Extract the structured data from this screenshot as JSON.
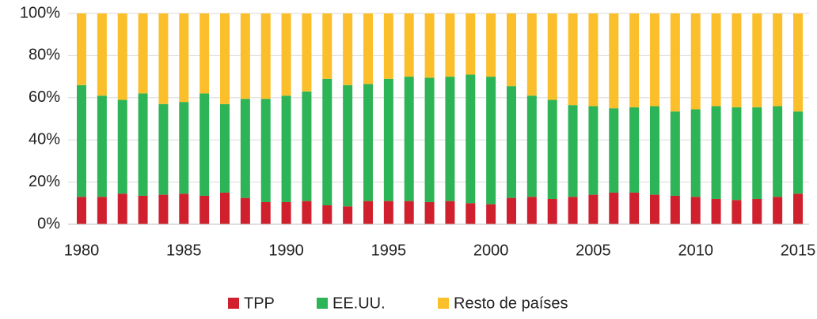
{
  "chart_data": {
    "type": "stacked_bar",
    "x": [
      1980,
      1981,
      1982,
      1983,
      1984,
      1985,
      1986,
      1987,
      1988,
      1989,
      1990,
      1991,
      1992,
      1993,
      1994,
      1995,
      1996,
      1997,
      1998,
      1999,
      2000,
      2001,
      2002,
      2003,
      2004,
      2005,
      2006,
      2007,
      2008,
      2009,
      2010,
      2011,
      2012,
      2013,
      2014,
      2015
    ],
    "series": [
      {
        "name": "TPP",
        "color": "#d0202e",
        "values": [
          13,
          13,
          14.5,
          13.5,
          14,
          14.5,
          13.5,
          15,
          12.5,
          10.5,
          10.5,
          11,
          9,
          8.5,
          11,
          11,
          11,
          10.5,
          11,
          10,
          9.5,
          12.5,
          13,
          12,
          13,
          14,
          15,
          15,
          14,
          13.5,
          13,
          12,
          11.5,
          12,
          13,
          14.5
        ]
      },
      {
        "name": "EE.UU.",
        "color": "#2db456",
        "values": [
          53,
          48,
          44.5,
          48.5,
          43,
          43.5,
          48.5,
          42,
          47,
          49,
          50.5,
          52,
          60,
          57.5,
          55.5,
          58,
          59,
          59,
          59,
          61,
          60.5,
          53,
          48,
          47,
          43.5,
          42,
          40,
          40.5,
          42,
          40,
          41.5,
          44,
          44,
          43.5,
          43,
          39
        ]
      },
      {
        "name": "Resto de países",
        "color": "#fbbf2c",
        "values": [
          34,
          39,
          41,
          38,
          43,
          42,
          38,
          43,
          40.5,
          40.5,
          39,
          37,
          31,
          34,
          33.5,
          31,
          30,
          30.5,
          30,
          29,
          30,
          34.5,
          39,
          41,
          43.5,
          44,
          45,
          44.5,
          44,
          46.5,
          45.5,
          44,
          44.5,
          44.5,
          44,
          46.5
        ]
      }
    ],
    "ylim": [
      0,
      100
    ],
    "yticks": [
      {
        "value": 0,
        "label": "0%"
      },
      {
        "value": 20,
        "label": "20%"
      },
      {
        "value": 40,
        "label": "40%"
      },
      {
        "value": 60,
        "label": "60%"
      },
      {
        "value": 80,
        "label": "80%"
      },
      {
        "value": 100,
        "label": "100%"
      }
    ],
    "xticks": [
      1980,
      1985,
      1990,
      1995,
      2000,
      2005,
      2010,
      2015
    ],
    "grid": true
  }
}
